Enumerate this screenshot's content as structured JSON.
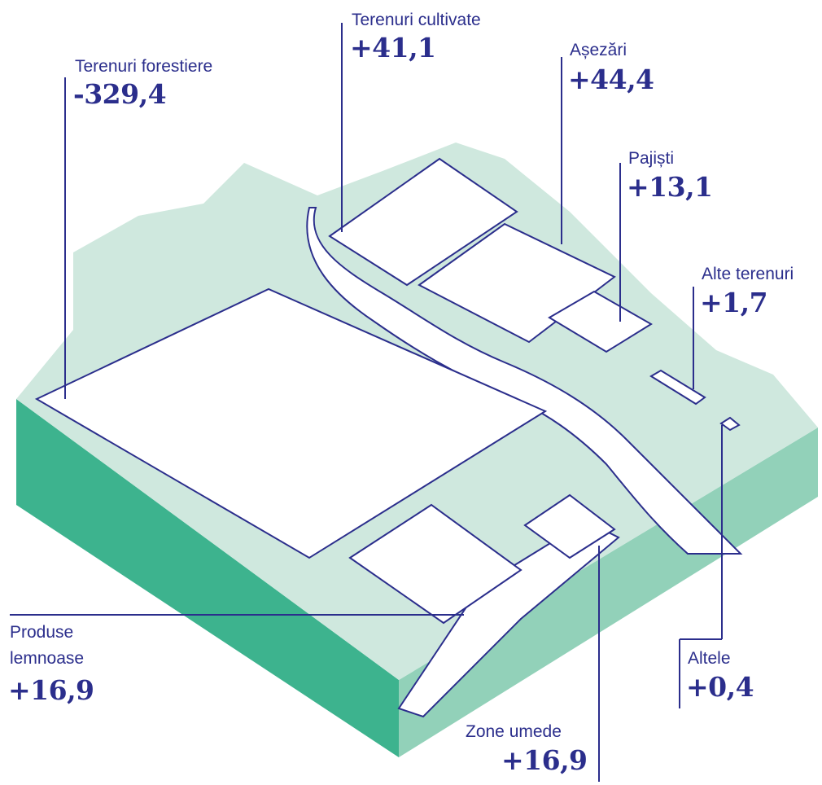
{
  "colors": {
    "ink": "#2b2e8c",
    "ground_light": "#cfe8de",
    "side_dark": "#3db38e",
    "side_light": "#92d1b9",
    "tile": "#ffffff"
  },
  "categories": {
    "forest": {
      "name": "Terenuri forestiere",
      "value": "-329,4"
    },
    "cropland": {
      "name": "Terenuri cultivate",
      "value": "+41,1"
    },
    "settlements": {
      "name": "Așezări",
      "value": "+44,4"
    },
    "grassland": {
      "name": "Pajiști",
      "value": "+13,1"
    },
    "other_land": {
      "name": "Alte terenuri",
      "value": "+1,7"
    },
    "wood_products": {
      "name_line1": "Produse",
      "name_line2": "lemnoase",
      "value": "+16,9"
    },
    "wetlands": {
      "name": "Zone umede",
      "value": "+16,9"
    },
    "other": {
      "name": "Altele",
      "value": "+0,4"
    }
  },
  "icons": [
    "forest-icon",
    "cropland-icon",
    "settlement-icon",
    "grassland-icon",
    "other-land-icon",
    "wood-products-icon",
    "wetland-icon",
    "other-icon"
  ]
}
